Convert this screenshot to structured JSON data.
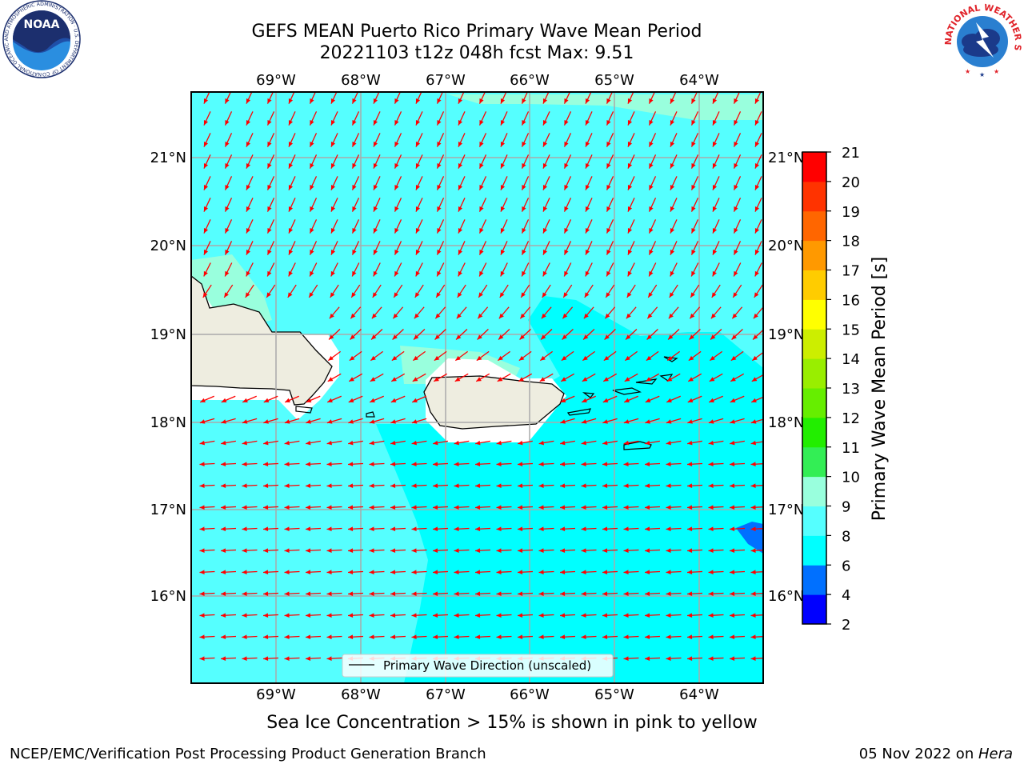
{
  "title_line1": "GEFS MEAN Puerto Rico Primary Wave Mean Period",
  "title_line2": "20221103 t12z 048h fcst   Max: 9.51",
  "caption": "Sea Ice Concentration > 15% is shown in pink to yellow",
  "footer_left": "NCEP/EMC/Verification Post Processing Product Generation Branch",
  "footer_date": "05 Nov 2022 on ",
  "footer_host": "Hera",
  "logos": {
    "noaa_text": "NOAA",
    "noaa_ring": "NATIONAL OCEANIC AND ATMOSPHERIC ADMINISTRATION · U.S. DEPARTMENT OF COMMERCE ·",
    "nws_ring": "NATIONAL WEATHER SERVICE"
  },
  "map": {
    "lon_labels": [
      "69°W",
      "68°W",
      "67°W",
      "66°W",
      "65°W",
      "64°W"
    ],
    "lat_labels": [
      "21°N",
      "20°N",
      "19°N",
      "18°N",
      "17°N",
      "16°N"
    ],
    "legend_label": "Primary Wave Direction (unscaled)"
  },
  "colorbar": {
    "label": "Primary Wave Mean Period [s]",
    "levels": [
      2,
      4,
      6,
      8,
      9,
      10,
      11,
      12,
      13,
      14,
      15,
      16,
      17,
      18,
      19,
      20,
      21
    ],
    "colors": [
      "#0000ff",
      "#0070ff",
      "#00ffff",
      "#55ffff",
      "#99ffdd",
      "#33ee55",
      "#22ee00",
      "#66ee00",
      "#99ee00",
      "#ccee00",
      "#ffff00",
      "#ffcc00",
      "#ff9900",
      "#ff6600",
      "#ff3300",
      "#ff0000"
    ]
  },
  "colors": {
    "land": "#eeede0",
    "sea_8_9": "#55ffff",
    "sea_6_8": "#00ffff",
    "sea_9_10": "#99ffdd",
    "sea_4_6": "#0070ff",
    "arrow": "#ff0000",
    "grid": "#aaaaaa"
  }
}
